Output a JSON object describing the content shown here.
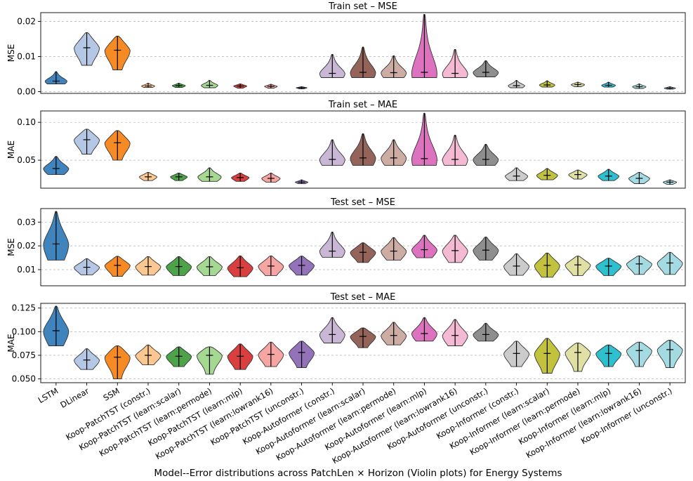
{
  "chart_data": {
    "type": "violin",
    "suptitle": "Model--Error distributions across PatchLen × Horizon (Violin plots) for Energy Systems",
    "categories": [
      "LSTM",
      "DLinear",
      "SSM",
      "Koop-PatchTST (constr.)",
      "Koop-PatchTST (learn:scalar)",
      "Koop-PatchTST (learn:permode)",
      "Koop-PatchTST (learn:mlp)",
      "Koop-PatchTST (learn:lowrank16)",
      "Koop-PatchTST (unconstr.)",
      "Koop-Autoformer (constr.)",
      "Koop-Autoformer (learn:scalar)",
      "Koop-Autoformer (learn:permode)",
      "Koop-Autoformer (learn:mlp)",
      "Koop-Autoformer (learn:lowrank16)",
      "Koop-Autoformer (unconstr.)",
      "Koop-Informer (constr.)",
      "Koop-Informer (learn:scalar)",
      "Koop-Informer (learn:permode)",
      "Koop-Informer (learn:mlp)",
      "Koop-Informer (learn:lowrank16)",
      "Koop-Informer (unconstr.)"
    ],
    "colors": [
      "#3f84bd",
      "#b4c8e6",
      "#f68b26",
      "#fdc791",
      "#4ea34a",
      "#a5d891",
      "#d93f3e",
      "#f7a5a3",
      "#9372ba",
      "#c9b7d5",
      "#946359",
      "#cdaca4",
      "#dd72bf",
      "#f4bad3",
      "#8e8e8e",
      "#cbcbcb",
      "#c2c23f",
      "#e0e0a5",
      "#2ec0cf",
      "#a4dbe3",
      "#a4dbe3"
    ],
    "panels": [
      {
        "title": "Train set – MSE",
        "ylabel": "MSE",
        "ylim": [
          -0.0005,
          0.0225
        ],
        "yticks": [
          0.0,
          0.01,
          0.02
        ],
        "ytick_labels": [
          "0.00",
          "0.01",
          "0.02"
        ],
        "series": [
          {
            "min": 0.0022,
            "max": 0.0057,
            "mean": 0.003
          },
          {
            "min": 0.0075,
            "max": 0.0168,
            "mean": 0.0125
          },
          {
            "min": 0.0062,
            "max": 0.0158,
            "mean": 0.0118
          },
          {
            "min": 0.0012,
            "max": 0.0024,
            "mean": 0.0016
          },
          {
            "min": 0.0012,
            "max": 0.0024,
            "mean": 0.0017
          },
          {
            "min": 0.0011,
            "max": 0.0032,
            "mean": 0.0018
          },
          {
            "min": 0.001,
            "max": 0.0022,
            "mean": 0.0016
          },
          {
            "min": 0.001,
            "max": 0.0021,
            "mean": 0.0015
          },
          {
            "min": 0.0008,
            "max": 0.0014,
            "mean": 0.0011
          },
          {
            "min": 0.004,
            "max": 0.0106,
            "mean": 0.0052
          },
          {
            "min": 0.004,
            "max": 0.0127,
            "mean": 0.0055
          },
          {
            "min": 0.004,
            "max": 0.0102,
            "mean": 0.0054
          },
          {
            "min": 0.004,
            "max": 0.022,
            "mean": 0.0055
          },
          {
            "min": 0.004,
            "max": 0.012,
            "mean": 0.0052
          },
          {
            "min": 0.0042,
            "max": 0.0088,
            "mean": 0.0055
          },
          {
            "min": 0.0011,
            "max": 0.0032,
            "mean": 0.0017
          },
          {
            "min": 0.0013,
            "max": 0.0031,
            "mean": 0.0019
          },
          {
            "min": 0.0014,
            "max": 0.0027,
            "mean": 0.002
          },
          {
            "min": 0.0013,
            "max": 0.0027,
            "mean": 0.0018
          },
          {
            "min": 0.0009,
            "max": 0.0022,
            "mean": 0.0014
          },
          {
            "min": 0.0007,
            "max": 0.0014,
            "mean": 0.001
          }
        ]
      },
      {
        "title": "Train set – MAE",
        "ylabel": "MAE",
        "ylim": [
          0.013,
          0.115
        ],
        "yticks": [
          0.05,
          0.1
        ],
        "ytick_labels": [
          "0.05",
          "0.10"
        ],
        "series": [
          {
            "min": 0.031,
            "max": 0.055,
            "mean": 0.039
          },
          {
            "min": 0.058,
            "max": 0.091,
            "mean": 0.077
          },
          {
            "min": 0.05,
            "max": 0.089,
            "mean": 0.073
          },
          {
            "min": 0.023,
            "max": 0.034,
            "mean": 0.028
          },
          {
            "min": 0.023,
            "max": 0.033,
            "mean": 0.028
          },
          {
            "min": 0.022,
            "max": 0.04,
            "mean": 0.028
          },
          {
            "min": 0.022,
            "max": 0.033,
            "mean": 0.027
          },
          {
            "min": 0.021,
            "max": 0.033,
            "mean": 0.026
          },
          {
            "min": 0.019,
            "max": 0.024,
            "mean": 0.021
          },
          {
            "min": 0.043,
            "max": 0.077,
            "mean": 0.051
          },
          {
            "min": 0.043,
            "max": 0.085,
            "mean": 0.053
          },
          {
            "min": 0.043,
            "max": 0.077,
            "mean": 0.053
          },
          {
            "min": 0.043,
            "max": 0.112,
            "mean": 0.052
          },
          {
            "min": 0.043,
            "max": 0.083,
            "mean": 0.051
          },
          {
            "min": 0.043,
            "max": 0.071,
            "mean": 0.051
          },
          {
            "min": 0.023,
            "max": 0.04,
            "mean": 0.029
          },
          {
            "min": 0.024,
            "max": 0.039,
            "mean": 0.03
          },
          {
            "min": 0.025,
            "max": 0.037,
            "mean": 0.031
          },
          {
            "min": 0.023,
            "max": 0.038,
            "mean": 0.029
          },
          {
            "min": 0.019,
            "max": 0.034,
            "mean": 0.026
          },
          {
            "min": 0.018,
            "max": 0.024,
            "mean": 0.021
          }
        ]
      },
      {
        "title": "Test set – MSE",
        "ylabel": "MSE",
        "ylim": [
          0.0032,
          0.0357
        ],
        "yticks": [
          0.01,
          0.02,
          0.03
        ],
        "ytick_labels": [
          "0.01",
          "0.02",
          "0.03"
        ],
        "series": [
          {
            "min": 0.014,
            "max": 0.0345,
            "mean": 0.0208
          },
          {
            "min": 0.0078,
            "max": 0.0146,
            "mean": 0.011
          },
          {
            "min": 0.0072,
            "max": 0.0156,
            "mean": 0.0118
          },
          {
            "min": 0.0077,
            "max": 0.0155,
            "mean": 0.0113
          },
          {
            "min": 0.0075,
            "max": 0.0155,
            "mean": 0.0113
          },
          {
            "min": 0.0075,
            "max": 0.0155,
            "mean": 0.0112
          },
          {
            "min": 0.007,
            "max": 0.0158,
            "mean": 0.0108
          },
          {
            "min": 0.0075,
            "max": 0.0158,
            "mean": 0.0115
          },
          {
            "min": 0.0077,
            "max": 0.0157,
            "mean": 0.0118
          },
          {
            "min": 0.0152,
            "max": 0.0258,
            "mean": 0.0178
          },
          {
            "min": 0.013,
            "max": 0.0213,
            "mean": 0.0173
          },
          {
            "min": 0.014,
            "max": 0.0235,
            "mean": 0.0178
          },
          {
            "min": 0.015,
            "max": 0.0245,
            "mean": 0.0184
          },
          {
            "min": 0.013,
            "max": 0.0245,
            "mean": 0.018
          },
          {
            "min": 0.014,
            "max": 0.0237,
            "mean": 0.0182
          },
          {
            "min": 0.0076,
            "max": 0.0167,
            "mean": 0.0115
          },
          {
            "min": 0.0068,
            "max": 0.017,
            "mean": 0.0118
          },
          {
            "min": 0.0075,
            "max": 0.0157,
            "mean": 0.012
          },
          {
            "min": 0.0075,
            "max": 0.0148,
            "mean": 0.0115
          },
          {
            "min": 0.008,
            "max": 0.0158,
            "mean": 0.0124
          },
          {
            "min": 0.008,
            "max": 0.0173,
            "mean": 0.0128
          }
        ]
      },
      {
        "title": "Test set – MAE",
        "ylabel": "MAE",
        "ylim": [
          0.046,
          0.13
        ],
        "yticks": [
          0.05,
          0.075,
          0.1,
          0.125
        ],
        "ytick_labels": [
          "0.050",
          "0.075",
          "0.100",
          "0.125"
        ],
        "series": [
          {
            "min": 0.085,
            "max": 0.127,
            "mean": 0.101
          },
          {
            "min": 0.06,
            "max": 0.082,
            "mean": 0.07
          },
          {
            "min": 0.05,
            "max": 0.085,
            "mean": 0.073
          },
          {
            "min": 0.065,
            "max": 0.086,
            "mean": 0.075
          },
          {
            "min": 0.063,
            "max": 0.084,
            "mean": 0.074
          },
          {
            "min": 0.055,
            "max": 0.084,
            "mean": 0.075
          },
          {
            "min": 0.06,
            "max": 0.087,
            "mean": 0.074
          },
          {
            "min": 0.063,
            "max": 0.089,
            "mean": 0.076
          },
          {
            "min": 0.062,
            "max": 0.09,
            "mean": 0.078
          },
          {
            "min": 0.088,
            "max": 0.115,
            "mean": 0.097
          },
          {
            "min": 0.083,
            "max": 0.104,
            "mean": 0.095
          },
          {
            "min": 0.086,
            "max": 0.11,
            "mean": 0.096
          },
          {
            "min": 0.09,
            "max": 0.115,
            "mean": 0.098
          },
          {
            "min": 0.085,
            "max": 0.113,
            "mean": 0.096
          },
          {
            "min": 0.09,
            "max": 0.109,
            "mean": 0.097
          },
          {
            "min": 0.063,
            "max": 0.09,
            "mean": 0.077
          },
          {
            "min": 0.056,
            "max": 0.093,
            "mean": 0.077
          },
          {
            "min": 0.058,
            "max": 0.088,
            "mean": 0.078
          },
          {
            "min": 0.063,
            "max": 0.086,
            "mean": 0.077
          },
          {
            "min": 0.063,
            "max": 0.089,
            "mean": 0.08
          },
          {
            "min": 0.062,
            "max": 0.091,
            "mean": 0.081
          }
        ]
      }
    ]
  }
}
